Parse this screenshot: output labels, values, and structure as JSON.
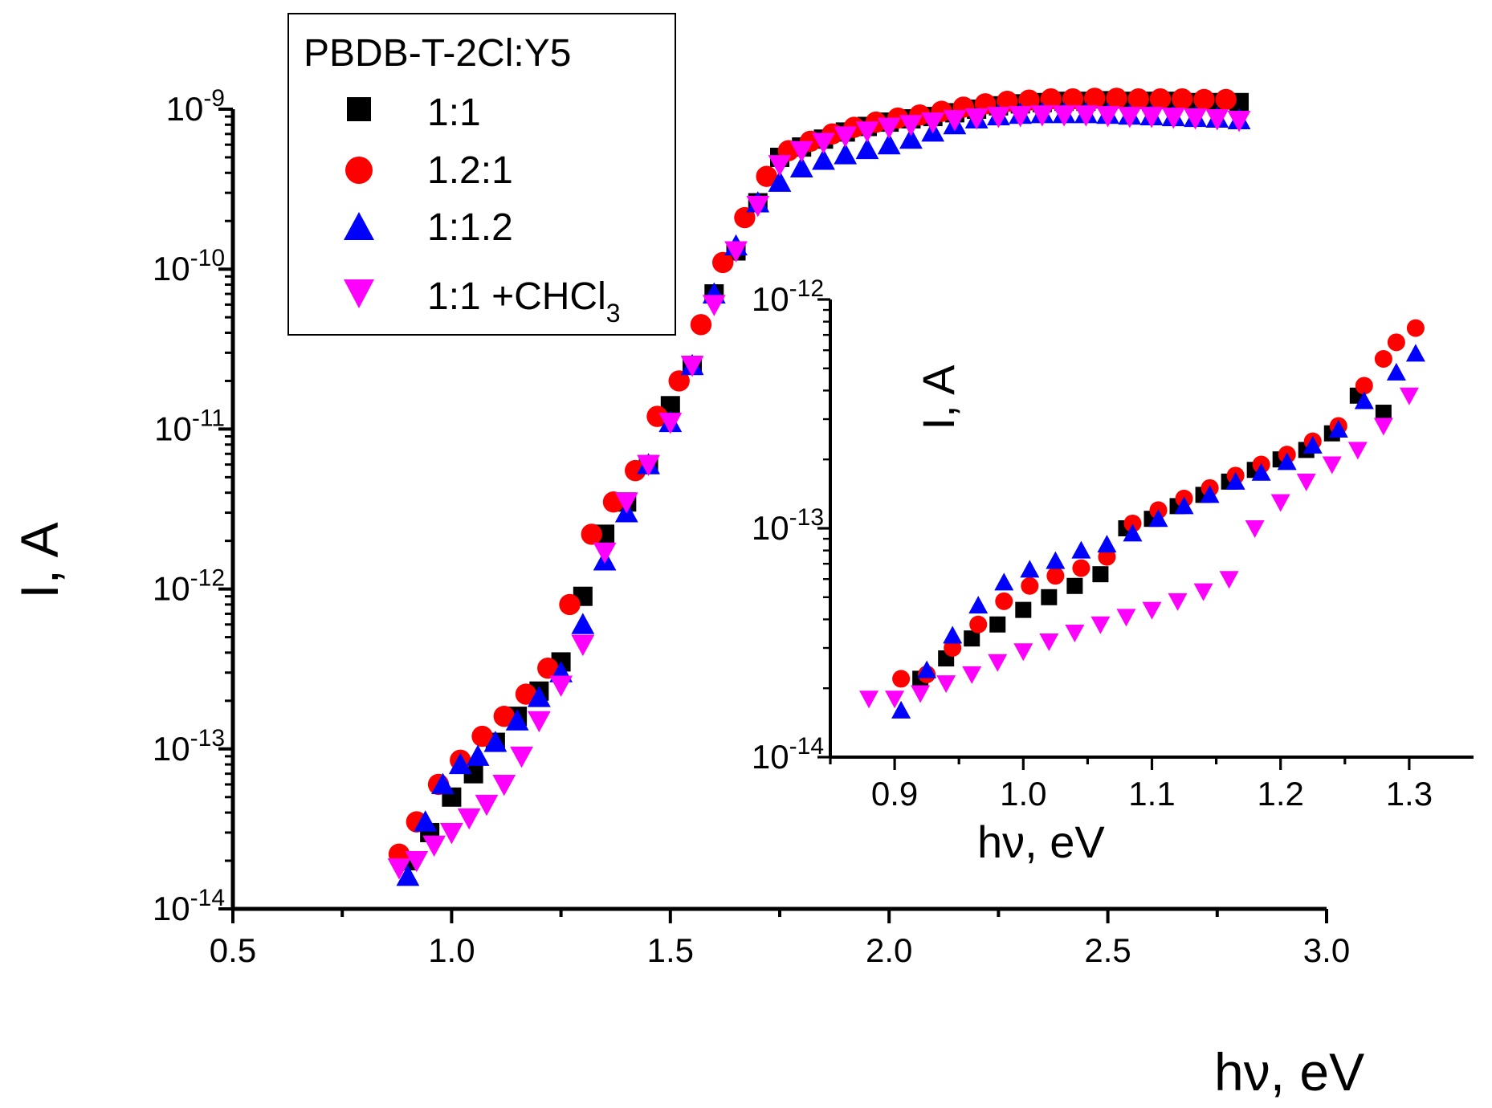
{
  "chart_data": [
    {
      "type": "scatter",
      "role": "main",
      "xlabel": "hν, eV",
      "ylabel": "I, A",
      "xscale": "linear",
      "yscale": "log",
      "xlim": [
        0.5,
        3.0
      ],
      "ylim": [
        1e-14,
        1e-09
      ],
      "x_ticks": [
        0.5,
        1.0,
        1.5,
        2.0,
        2.5,
        3.0
      ],
      "x_tick_labels": [
        "0.5",
        "1.0",
        "1.5",
        "2.0",
        "2.5",
        "3.0"
      ],
      "y_ticks": [
        {
          "base": "10",
          "exp": "-14"
        },
        {
          "base": "10",
          "exp": "-13"
        },
        {
          "base": "10",
          "exp": "-12"
        },
        {
          "base": "10",
          "exp": "-11"
        },
        {
          "base": "10",
          "exp": "-10"
        },
        {
          "base": "10",
          "exp": "-9"
        }
      ],
      "legend": {
        "title": "PBDB-T-2Cl:Y5",
        "placement": "top-left",
        "entries": [
          {
            "label": "1:1",
            "sub": ""
          },
          {
            "label": "1.2:1",
            "sub": ""
          },
          {
            "label": "1:1.2",
            "sub": ""
          },
          {
            "label": "1:1 +CHCl",
            "sub": "3"
          }
        ]
      },
      "series": [
        {
          "name": "1:1",
          "marker": "square",
          "color": "#000000",
          "x": [
            0.9,
            0.95,
            1.0,
            1.05,
            1.1,
            1.15,
            1.2,
            1.25,
            1.3,
            1.35,
            1.4,
            1.45,
            1.5,
            1.55,
            1.6,
            1.65,
            1.7,
            1.75,
            1.8,
            1.85,
            1.9,
            1.95,
            2.0,
            2.05,
            2.1,
            2.15,
            2.2,
            2.25,
            2.3,
            2.35,
            2.4,
            2.45,
            2.5,
            2.55,
            2.6,
            2.65,
            2.7,
            2.75,
            2.8
          ],
          "y": [
            2e-14,
            3e-14,
            5e-14,
            7e-14,
            1.1e-13,
            1.6e-13,
            2.3e-13,
            3.5e-13,
            9e-13,
            2.2e-12,
            3.5e-12,
            6e-12,
            1.4e-11,
            2.5e-11,
            7e-11,
            1.3e-10,
            2.6e-10,
            5e-10,
            5.8e-10,
            6.5e-10,
            7.2e-10,
            7.8e-10,
            8.3e-10,
            8.7e-10,
            9e-10,
            9.5e-10,
            1e-09,
            1.05e-09,
            1.08e-09,
            1.1e-09,
            1.12e-09,
            1.12e-09,
            1.13e-09,
            1.12e-09,
            1.12e-09,
            1.12e-09,
            1.1e-09,
            1.1e-09,
            1.1e-09
          ]
        },
        {
          "name": "1.2:1",
          "marker": "circle",
          "color": "#ff0000",
          "x": [
            0.88,
            0.92,
            0.97,
            1.02,
            1.07,
            1.12,
            1.17,
            1.22,
            1.27,
            1.32,
            1.37,
            1.42,
            1.47,
            1.52,
            1.57,
            1.62,
            1.67,
            1.72,
            1.77,
            1.82,
            1.87,
            1.92,
            1.97,
            2.02,
            2.07,
            2.12,
            2.17,
            2.22,
            2.27,
            2.32,
            2.37,
            2.42,
            2.47,
            2.52,
            2.57,
            2.62,
            2.67,
            2.72,
            2.77
          ],
          "y": [
            2.2e-14,
            3.5e-14,
            6e-14,
            8.5e-14,
            1.2e-13,
            1.6e-13,
            2.2e-13,
            3.2e-13,
            8e-13,
            2.2e-12,
            3.5e-12,
            5.5e-12,
            1.2e-11,
            2e-11,
            4.5e-11,
            1.1e-10,
            2.1e-10,
            3.8e-10,
            5.5e-10,
            6.3e-10,
            7e-10,
            7.7e-10,
            8.3e-10,
            8.8e-10,
            9.2e-10,
            9.7e-10,
            1.03e-09,
            1.08e-09,
            1.12e-09,
            1.14e-09,
            1.16e-09,
            1.16e-09,
            1.17e-09,
            1.17e-09,
            1.16e-09,
            1.16e-09,
            1.16e-09,
            1.15e-09,
            1.15e-09
          ]
        },
        {
          "name": "1:1.2",
          "marker": "triangle-up",
          "color": "#0000ff",
          "x": [
            0.9,
            0.94,
            0.98,
            1.02,
            1.06,
            1.1,
            1.15,
            1.2,
            1.25,
            1.3,
            1.35,
            1.4,
            1.45,
            1.5,
            1.55,
            1.6,
            1.65,
            1.7,
            1.75,
            1.8,
            1.85,
            1.9,
            1.95,
            2.0,
            2.05,
            2.1,
            2.15,
            2.2,
            2.25,
            2.3,
            2.35,
            2.4,
            2.45,
            2.5,
            2.55,
            2.6,
            2.65,
            2.7,
            2.75,
            2.8
          ],
          "y": [
            1.6e-14,
            3.5e-14,
            6e-14,
            8e-14,
            9e-14,
            1.1e-13,
            1.5e-13,
            2.1e-13,
            3e-13,
            6e-13,
            1.5e-12,
            3e-12,
            6e-12,
            1.1e-11,
            2.5e-11,
            7e-11,
            1.4e-10,
            2.6e-10,
            3.5e-10,
            4.3e-10,
            4.8e-10,
            5.2e-10,
            5.6e-10,
            6e-10,
            6.5e-10,
            7.2e-10,
            8e-10,
            8.7e-10,
            9.1e-10,
            9.3e-10,
            9.4e-10,
            9.4e-10,
            9.4e-10,
            9.3e-10,
            9.2e-10,
            9.1e-10,
            9e-10,
            8.9e-10,
            8.8e-10,
            8.6e-10
          ]
        },
        {
          "name": "1:1 +CHCl3",
          "marker": "triangle-down",
          "color": "#ff00ff",
          "x": [
            0.88,
            0.92,
            0.96,
            1.0,
            1.04,
            1.08,
            1.12,
            1.16,
            1.2,
            1.25,
            1.3,
            1.35,
            1.4,
            1.45,
            1.5,
            1.55,
            1.6,
            1.65,
            1.7,
            1.75,
            1.8,
            1.85,
            1.9,
            1.95,
            2.0,
            2.05,
            2.1,
            2.15,
            2.2,
            2.25,
            2.3,
            2.35,
            2.4,
            2.45,
            2.5,
            2.55,
            2.6,
            2.65,
            2.7,
            2.75,
            2.8
          ],
          "y": [
            1.8e-14,
            2e-14,
            2.5e-14,
            3e-14,
            3.7e-14,
            4.5e-14,
            6e-14,
            9e-14,
            1.5e-13,
            2.5e-13,
            4.5e-13,
            1.7e-12,
            3.5e-12,
            6e-12,
            1.1e-11,
            2.5e-11,
            6e-11,
            1.3e-10,
            2.5e-10,
            4.5e-10,
            5.5e-10,
            6.2e-10,
            6.8e-10,
            7.3e-10,
            7.7e-10,
            8e-10,
            8.3e-10,
            8.6e-10,
            8.8e-10,
            9e-10,
            9.1e-10,
            9.2e-10,
            9.2e-10,
            9.2e-10,
            9.1e-10,
            9e-10,
            9e-10,
            8.9e-10,
            8.8e-10,
            8.7e-10,
            8.5e-10
          ]
        }
      ]
    },
    {
      "type": "scatter",
      "role": "inset",
      "xlabel": "hν, eV",
      "ylabel": "I, A",
      "xscale": "linear",
      "yscale": "log",
      "xlim": [
        0.85,
        1.35
      ],
      "ylim": [
        1e-14,
        1e-12
      ],
      "x_ticks": [
        0.9,
        1.0,
        1.1,
        1.2,
        1.3
      ],
      "x_tick_labels": [
        "0.9",
        "1.0",
        "1.1",
        "1.2",
        "1.3"
      ],
      "y_ticks": [
        {
          "base": "10",
          "exp": "-14"
        },
        {
          "base": "10",
          "exp": "-13"
        },
        {
          "base": "10",
          "exp": "-12"
        }
      ],
      "series": [
        {
          "name": "1:1",
          "marker": "square",
          "color": "#000000",
          "x": [
            0.92,
            0.94,
            0.96,
            0.98,
            1.0,
            1.02,
            1.04,
            1.06,
            1.08,
            1.1,
            1.12,
            1.14,
            1.16,
            1.18,
            1.2,
            1.22,
            1.24,
            1.26,
            1.28
          ],
          "y": [
            2.2e-14,
            2.7e-14,
            3.3e-14,
            3.8e-14,
            4.4e-14,
            5e-14,
            5.6e-14,
            6.3e-14,
            1e-13,
            1.1e-13,
            1.25e-13,
            1.4e-13,
            1.6e-13,
            1.8e-13,
            2e-13,
            2.2e-13,
            2.6e-13,
            3.8e-13,
            3.2e-13
          ]
        },
        {
          "name": "1.2:1",
          "marker": "circle",
          "color": "#ff0000",
          "x": [
            0.905,
            0.925,
            0.945,
            0.965,
            0.985,
            1.005,
            1.025,
            1.045,
            1.065,
            1.085,
            1.105,
            1.125,
            1.145,
            1.165,
            1.185,
            1.205,
            1.225,
            1.245,
            1.265,
            1.28,
            1.29,
            1.305
          ],
          "y": [
            2.2e-14,
            2.3e-14,
            3e-14,
            3.8e-14,
            4.8e-14,
            5.6e-14,
            6.2e-14,
            6.7e-14,
            7.5e-14,
            1.05e-13,
            1.2e-13,
            1.35e-13,
            1.5e-13,
            1.7e-13,
            1.9e-13,
            2.1e-13,
            2.4e-13,
            2.8e-13,
            4.2e-13,
            5.5e-13,
            6.5e-13,
            7.5e-13
          ]
        },
        {
          "name": "1:1.2",
          "marker": "triangle-up",
          "color": "#0000ff",
          "x": [
            0.905,
            0.925,
            0.945,
            0.965,
            0.985,
            1.005,
            1.025,
            1.045,
            1.065,
            1.085,
            1.105,
            1.125,
            1.145,
            1.165,
            1.185,
            1.205,
            1.225,
            1.245,
            1.265,
            1.29,
            1.305
          ],
          "y": [
            1.6e-14,
            2.4e-14,
            3.4e-14,
            4.6e-14,
            5.8e-14,
            6.6e-14,
            7.2e-14,
            8e-14,
            8.5e-14,
            9.5e-14,
            1.1e-13,
            1.25e-13,
            1.4e-13,
            1.6e-13,
            1.75e-13,
            1.95e-13,
            2.3e-13,
            2.7e-13,
            3.6e-13,
            4.8e-13,
            5.8e-13
          ]
        },
        {
          "name": "1:1 +CHCl3",
          "marker": "triangle-down",
          "color": "#ff00ff",
          "x": [
            0.88,
            0.9,
            0.92,
            0.94,
            0.96,
            0.98,
            1.0,
            1.02,
            1.04,
            1.06,
            1.08,
            1.1,
            1.12,
            1.14,
            1.16,
            1.18,
            1.2,
            1.22,
            1.24,
            1.26,
            1.28,
            1.3
          ],
          "y": [
            1.8e-14,
            1.8e-14,
            1.9e-14,
            2.1e-14,
            2.3e-14,
            2.6e-14,
            2.9e-14,
            3.2e-14,
            3.5e-14,
            3.8e-14,
            4.1e-14,
            4.4e-14,
            4.8e-14,
            5.3e-14,
            6e-14,
            1e-13,
            1.3e-13,
            1.6e-13,
            1.9e-13,
            2.2e-13,
            2.8e-13,
            3.8e-13
          ]
        }
      ]
    }
  ]
}
